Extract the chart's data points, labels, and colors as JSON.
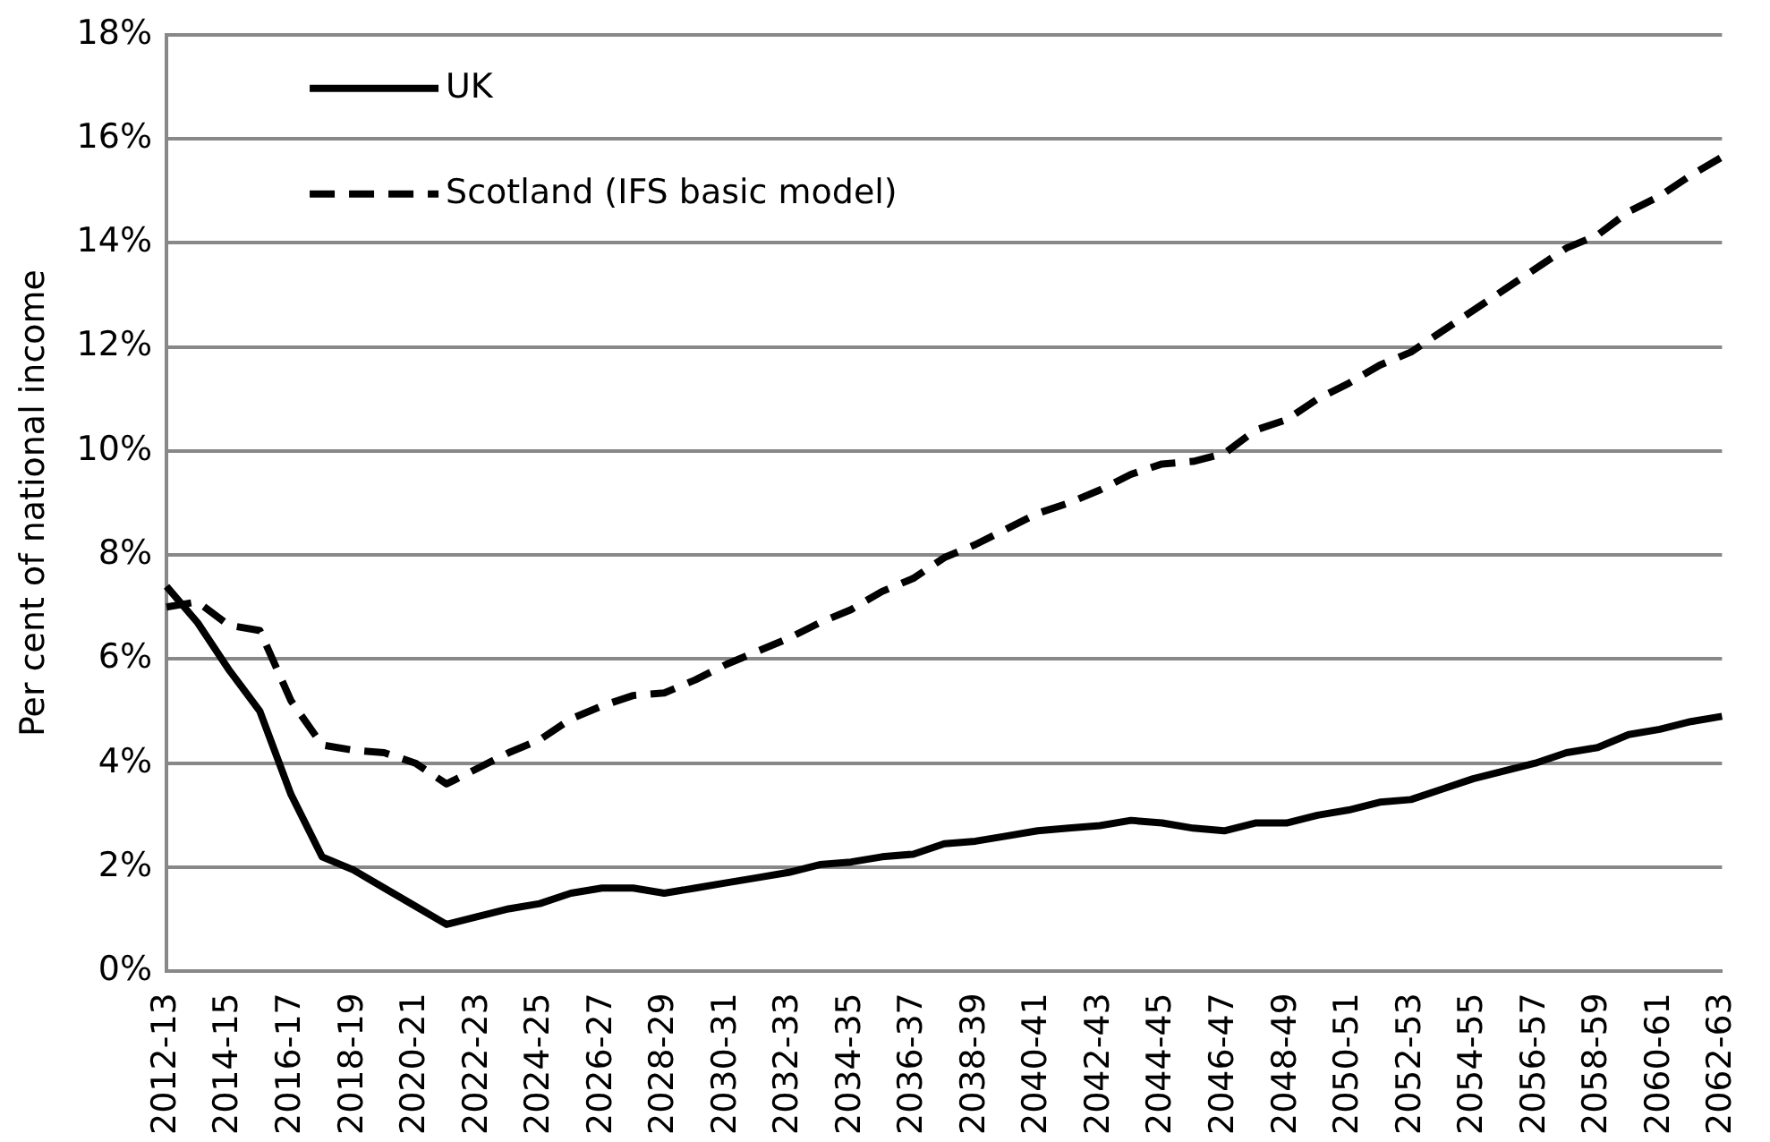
{
  "chart_data": {
    "type": "line",
    "ylabel": "Per cent of national income",
    "categories": [
      "2012-13",
      null,
      "2014-15",
      null,
      "2016-17",
      null,
      "2018-19",
      null,
      "2020-21",
      null,
      "2022-23",
      null,
      "2024-25",
      null,
      "2026-27",
      null,
      "2028-29",
      null,
      "2030-31",
      null,
      "2032-33",
      null,
      "2034-35",
      null,
      "2036-37",
      null,
      "2038-39",
      null,
      "2040-41",
      null,
      "2042-43",
      null,
      "2044-45",
      null,
      "2046-47",
      null,
      "2048-49",
      null,
      "2050-51",
      null,
      "2052-53",
      null,
      "2054-55",
      null,
      "2056-57",
      null,
      "2058-59",
      null,
      "2060-61",
      null,
      "2062-63"
    ],
    "series": [
      {
        "name": "UK",
        "color": "#000000",
        "line_style": "solid",
        "values": [
          7.4,
          6.7,
          5.8,
          5.0,
          3.4,
          2.2,
          1.95,
          1.6,
          1.25,
          0.9,
          1.05,
          1.2,
          1.3,
          1.5,
          1.6,
          1.6,
          1.5,
          1.6,
          1.7,
          1.8,
          1.9,
          2.05,
          2.1,
          2.2,
          2.25,
          2.45,
          2.5,
          2.6,
          2.7,
          2.75,
          2.8,
          2.9,
          2.85,
          2.75,
          2.7,
          2.85,
          2.85,
          3.0,
          3.1,
          3.25,
          3.3,
          3.5,
          3.7,
          3.85,
          4.0,
          4.2,
          4.3,
          4.55,
          4.65,
          4.8,
          4.9
        ]
      },
      {
        "name": "Scotland (IFS basic model)",
        "color": "#000000",
        "line_style": "dashed",
        "values": [
          7.0,
          7.1,
          6.65,
          6.55,
          5.2,
          4.35,
          4.25,
          4.2,
          4.0,
          3.6,
          3.9,
          4.2,
          4.45,
          4.85,
          5.1,
          5.3,
          5.35,
          5.6,
          5.9,
          6.15,
          6.4,
          6.7,
          6.95,
          7.3,
          7.55,
          7.95,
          8.2,
          8.5,
          8.8,
          9.0,
          9.25,
          9.55,
          9.75,
          9.8,
          9.95,
          10.4,
          10.6,
          11.0,
          11.3,
          11.65,
          11.9,
          12.3,
          12.7,
          13.1,
          13.5,
          13.9,
          14.15,
          14.6,
          14.9,
          15.3,
          15.65
        ]
      }
    ],
    "ylim": [
      0,
      18
    ],
    "yticks": [
      {
        "value": 0,
        "label": "0%"
      },
      {
        "value": 2,
        "label": "2%"
      },
      {
        "value": 4,
        "label": "4%"
      },
      {
        "value": 6,
        "label": "6%"
      },
      {
        "value": 8,
        "label": "8%"
      },
      {
        "value": 10,
        "label": "10%"
      },
      {
        "value": 12,
        "label": "12%"
      },
      {
        "value": 14,
        "label": "14%"
      },
      {
        "value": 16,
        "label": "16%"
      },
      {
        "value": 18,
        "label": "18%"
      }
    ],
    "grid": "y",
    "legend": "top left",
    "marker": "none"
  }
}
